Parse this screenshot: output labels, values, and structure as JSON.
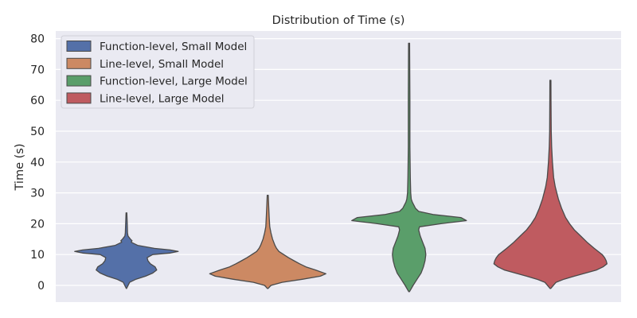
{
  "chart_data": {
    "type": "violin",
    "title": "Distribution of Time (s)",
    "xlabel": "",
    "ylabel": "Time (s)",
    "ylim": [
      -5,
      82
    ],
    "yticks": [
      0,
      10,
      20,
      30,
      40,
      50,
      60,
      70,
      80
    ],
    "grid": true,
    "legend_position": "top-left",
    "series": [
      {
        "name": "Function-level, Small Model",
        "color": "#5470a8",
        "min": -1,
        "max": 23.5,
        "profile": [
          [
            -1,
            0.2
          ],
          [
            1,
            4
          ],
          [
            2,
            12
          ],
          [
            3,
            24
          ],
          [
            4,
            33
          ],
          [
            5,
            38
          ],
          [
            6,
            36
          ],
          [
            7,
            30
          ],
          [
            8,
            27
          ],
          [
            9,
            26
          ],
          [
            10,
            33
          ],
          [
            10.5,
            55
          ],
          [
            11,
            65
          ],
          [
            11.5,
            55
          ],
          [
            12,
            35
          ],
          [
            13,
            14
          ],
          [
            14,
            6
          ],
          [
            14.5,
            7
          ],
          [
            15,
            5
          ],
          [
            16,
            2
          ],
          [
            17,
            1.3
          ],
          [
            20,
            1
          ],
          [
            23.5,
            0.5
          ]
        ]
      },
      {
        "name": "Line-level, Small Model",
        "color": "#cc8963",
        "min": -1,
        "max": 29.2,
        "profile": [
          [
            -1,
            0.3
          ],
          [
            0,
            4
          ],
          [
            1,
            18
          ],
          [
            2,
            44
          ],
          [
            3,
            66
          ],
          [
            3.8,
            73
          ],
          [
            5,
            60
          ],
          [
            6,
            48
          ],
          [
            7,
            40
          ],
          [
            8,
            33
          ],
          [
            9,
            26
          ],
          [
            10,
            20
          ],
          [
            11,
            14
          ],
          [
            12,
            11
          ],
          [
            13,
            9
          ],
          [
            15,
            6
          ],
          [
            17,
            4
          ],
          [
            19,
            2.5
          ],
          [
            22,
            1.8
          ],
          [
            26,
            1.2
          ],
          [
            29.2,
            0.6
          ]
        ]
      },
      {
        "name": "Function-level, Large Model",
        "color": "#5a9e6a",
        "min": -2,
        "max": 78.5,
        "profile": [
          [
            -2,
            0.5
          ],
          [
            0,
            5
          ],
          [
            2,
            10
          ],
          [
            4,
            15
          ],
          [
            6,
            18
          ],
          [
            8,
            20
          ],
          [
            10,
            21
          ],
          [
            12,
            20
          ],
          [
            14,
            17
          ],
          [
            16,
            14
          ],
          [
            18,
            12
          ],
          [
            19,
            13
          ],
          [
            20,
            40
          ],
          [
            21,
            72
          ],
          [
            22,
            65
          ],
          [
            23,
            30
          ],
          [
            24,
            12
          ],
          [
            25,
            8
          ],
          [
            26,
            6
          ],
          [
            27,
            4
          ],
          [
            28,
            2.8
          ],
          [
            30,
            2
          ],
          [
            35,
            1.5
          ],
          [
            45,
            1
          ],
          [
            60,
            1
          ],
          [
            78.5,
            0.6
          ]
        ]
      },
      {
        "name": "Line-level, Large Model",
        "color": "#bf5b60",
        "min": -1,
        "max": 66.5,
        "profile": [
          [
            -1,
            0.4
          ],
          [
            1,
            7
          ],
          [
            2,
            17
          ],
          [
            3,
            30
          ],
          [
            4,
            44
          ],
          [
            5,
            58
          ],
          [
            6,
            66
          ],
          [
            7,
            71
          ],
          [
            8,
            70
          ],
          [
            9,
            68
          ],
          [
            10,
            65
          ],
          [
            12,
            55
          ],
          [
            14,
            46
          ],
          [
            16,
            38
          ],
          [
            18,
            30
          ],
          [
            20,
            24
          ],
          [
            22,
            19
          ],
          [
            25,
            14
          ],
          [
            28,
            10
          ],
          [
            30,
            8
          ],
          [
            32,
            6
          ],
          [
            35,
            4
          ],
          [
            40,
            2.5
          ],
          [
            45,
            1.5
          ],
          [
            50,
            1
          ],
          [
            60,
            0.8
          ],
          [
            66.5,
            0.6
          ]
        ]
      }
    ]
  }
}
